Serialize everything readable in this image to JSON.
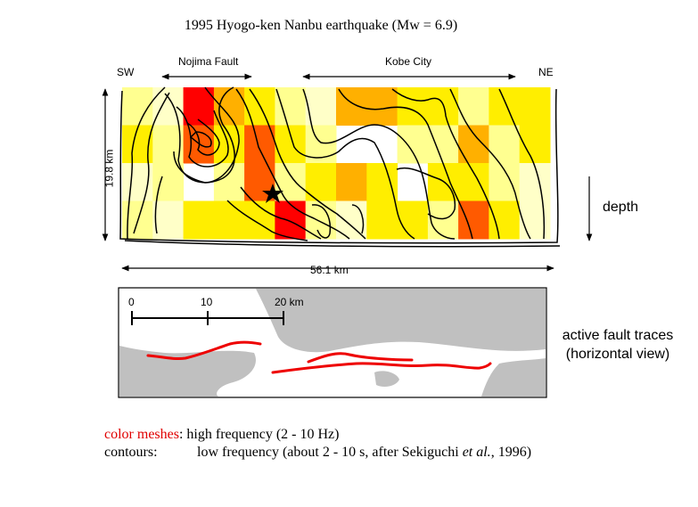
{
  "title": "1995 Hyogo-ken Nanbu earthquake (Mw = 6.9)",
  "cross_section": {
    "label_sw": "SW",
    "label_ne": "NE",
    "label_nojima_fault": "Nojima Fault",
    "label_kobe_city": "Kobe City",
    "depth_extent": "19.8 km",
    "length_extent": "56.1 km",
    "depth_label": "depth",
    "colors": {
      "red": "#ff0000",
      "dark_orange": "#ff5a00",
      "orange": "#ffb000",
      "yellow": "#ffee00",
      "pale_yellow": "#ffff90",
      "very_pale": "#ffffc8"
    },
    "mesh_rows": [
      [
        "pale_yellow",
        "very_pale",
        "red",
        "orange",
        "yellow",
        "pale_yellow",
        "very_pale",
        "orange",
        "orange",
        "yellow",
        "yellow",
        "pale_yellow",
        "yellow",
        "yellow"
      ],
      [
        "yellow",
        "pale_yellow",
        "dark_orange",
        "yellow",
        "dark_orange",
        "yellow",
        "pale_yellow",
        "white",
        "white",
        "pale_yellow",
        "pale_yellow",
        "orange",
        "pale_yellow",
        "yellow"
      ],
      [
        "very_pale",
        "pale_yellow",
        "white",
        "pale_yellow",
        "dark_orange",
        "pale_yellow",
        "yellow",
        "orange",
        "yellow",
        "white",
        "yellow",
        "yellow",
        "pale_yellow",
        "very_pale"
      ],
      [
        "pale_yellow",
        "very_pale",
        "yellow",
        "yellow",
        "yellow",
        "red",
        "pale_yellow",
        "very_pale",
        "yellow",
        "yellow",
        "pale_yellow",
        "dark_orange",
        "yellow",
        "very_pale"
      ]
    ]
  },
  "map_panel": {
    "scale_ticks": [
      "0",
      "10",
      "20 km"
    ],
    "fault_color": "#ee0000",
    "land_color": "#c0c0c0",
    "label_active_fault_traces": "active fault traces",
    "label_horizontal_view": "(horizontal view)"
  },
  "legend": {
    "color_key": "color meshes",
    "color_desc": ": high frequency (2 - 10 Hz)",
    "contour_key": "contours:",
    "contour_desc_before": "low frequency (about 2 - 10 s, after Sekiguchi ",
    "contour_desc_italic": "et al.",
    "contour_desc_after": ", 1996)"
  }
}
